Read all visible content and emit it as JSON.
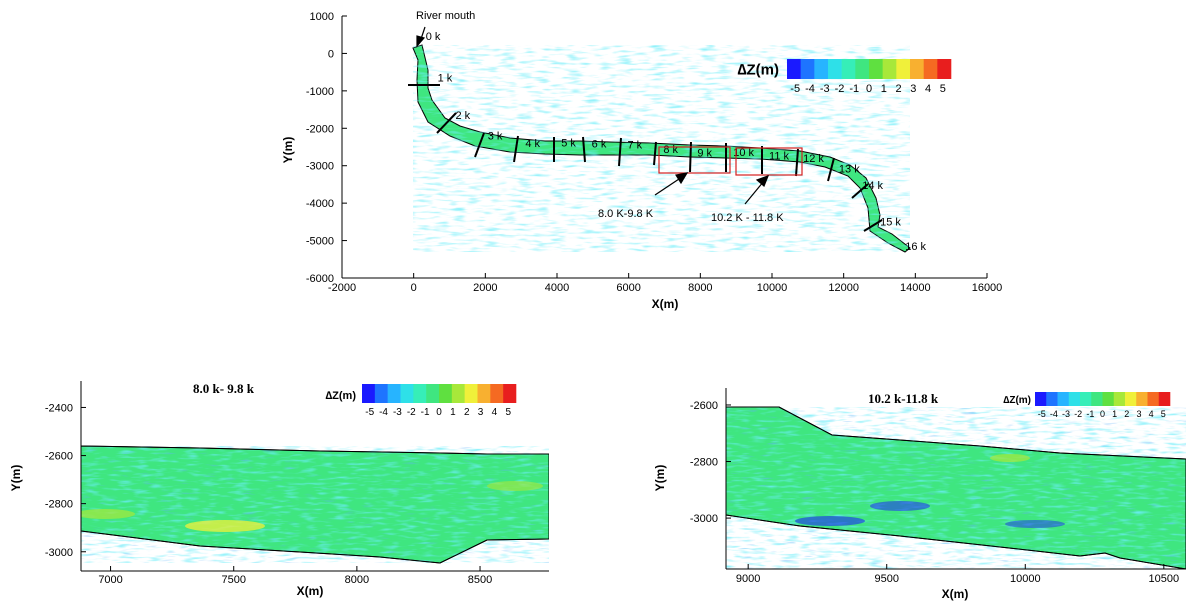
{
  "chart_data": [
    {
      "type": "heatmap",
      "title": "",
      "xlabel": "X(m)",
      "ylabel": "Y(m)",
      "xlim": [
        -2000,
        16000
      ],
      "ylim": [
        -6000,
        1000
      ],
      "x_ticks": [
        "-2000",
        "0",
        "2000",
        "4000",
        "6000",
        "8000",
        "10000",
        "12000",
        "14000",
        "16000"
      ],
      "y_ticks": [
        "1000",
        "0",
        "-1000",
        "-2000",
        "-3000",
        "-4000",
        "-5000",
        "-6000"
      ],
      "annotation_mouth": "River mouth",
      "legend": {
        "title": "∆Z(m)",
        "ticks": [
          "-5",
          "-4",
          "-3",
          "-2",
          "-1",
          "0",
          "1",
          "2",
          "3",
          "4",
          "5"
        ],
        "colors": [
          "#1a1aff",
          "#1e74ff",
          "#27b4ff",
          "#2ee0e8",
          "#36eeb8",
          "#3fe680",
          "#5fe040",
          "#a8e83a",
          "#f0f03a",
          "#f8b030",
          "#f56a22",
          "#e81e1e"
        ]
      },
      "stations": [
        {
          "label": "0 k",
          "x": 170,
          "y": 300
        },
        {
          "label": "1 k",
          "x": 500,
          "y": -800
        },
        {
          "label": "2 k",
          "x": 1000,
          "y": -1800
        },
        {
          "label": "3 k",
          "x": 1900,
          "y": -2350
        },
        {
          "label": "4 k",
          "x": 2950,
          "y": -2560
        },
        {
          "label": "5 k",
          "x": 3950,
          "y": -2540
        },
        {
          "label": "6 k",
          "x": 4800,
          "y": -2570
        },
        {
          "label": "7 k",
          "x": 5800,
          "y": -2600
        },
        {
          "label": "8 k",
          "x": 6800,
          "y": -2720
        },
        {
          "label": "9 k",
          "x": 7750,
          "y": -2810
        },
        {
          "label": "10 k",
          "x": 8750,
          "y": -2800
        },
        {
          "label": "11 k",
          "x": 9750,
          "y": -2890
        },
        {
          "label": "12 k",
          "x": 10700,
          "y": -2960
        },
        {
          "label": "13 k",
          "x": 11700,
          "y": -3240
        },
        {
          "label": "14 k",
          "x": 12350,
          "y": -3680
        },
        {
          "label": "15 k",
          "x": 12850,
          "y": -4650
        },
        {
          "label": "16 k",
          "x": 13550,
          "y": -5300
        }
      ],
      "zoom_boxes": [
        {
          "label": "8.0 K-9.8 K",
          "x": [
            6900,
            8800
          ],
          "y": [
            -2450,
            -3200
          ]
        },
        {
          "label": "10.2 K - 11.8 K",
          "x": [
            9000,
            10800
          ],
          "y": [
            -2500,
            -3250
          ]
        }
      ]
    },
    {
      "type": "heatmap",
      "title": "8.0 k- 9.8 k",
      "xlabel": "X(m)",
      "ylabel": "Y(m)",
      "xlim": [
        6880,
        8780
      ],
      "ylim": [
        -3080,
        -2290
      ],
      "x_ticks": [
        "7000",
        "7500",
        "8000",
        "8500"
      ],
      "y_ticks": [
        "-2400",
        "-2600",
        "-2800",
        "-3000"
      ],
      "legend": {
        "title": "∆Z(m)",
        "ticks": [
          "-5",
          "-4",
          "-3",
          "-2",
          "-1",
          "0",
          "1",
          "2",
          "3",
          "4",
          "5"
        ]
      }
    },
    {
      "type": "heatmap",
      "title": "10.2 k-11.8 k",
      "xlabel": "X(m)",
      "ylabel": "Y(m)",
      "xlim": [
        8920,
        10580
      ],
      "ylim": [
        -3180,
        -2540
      ],
      "x_ticks": [
        "9000",
        "9500",
        "10000",
        "10500"
      ],
      "y_ticks": [
        "-2600",
        "-2800",
        "-3000"
      ],
      "legend": {
        "title": "∆Z(m)",
        "ticks": [
          "-5",
          "-4",
          "-3",
          "-2",
          "-1",
          "0",
          "1",
          "2",
          "3",
          "4",
          "5"
        ]
      }
    }
  ]
}
